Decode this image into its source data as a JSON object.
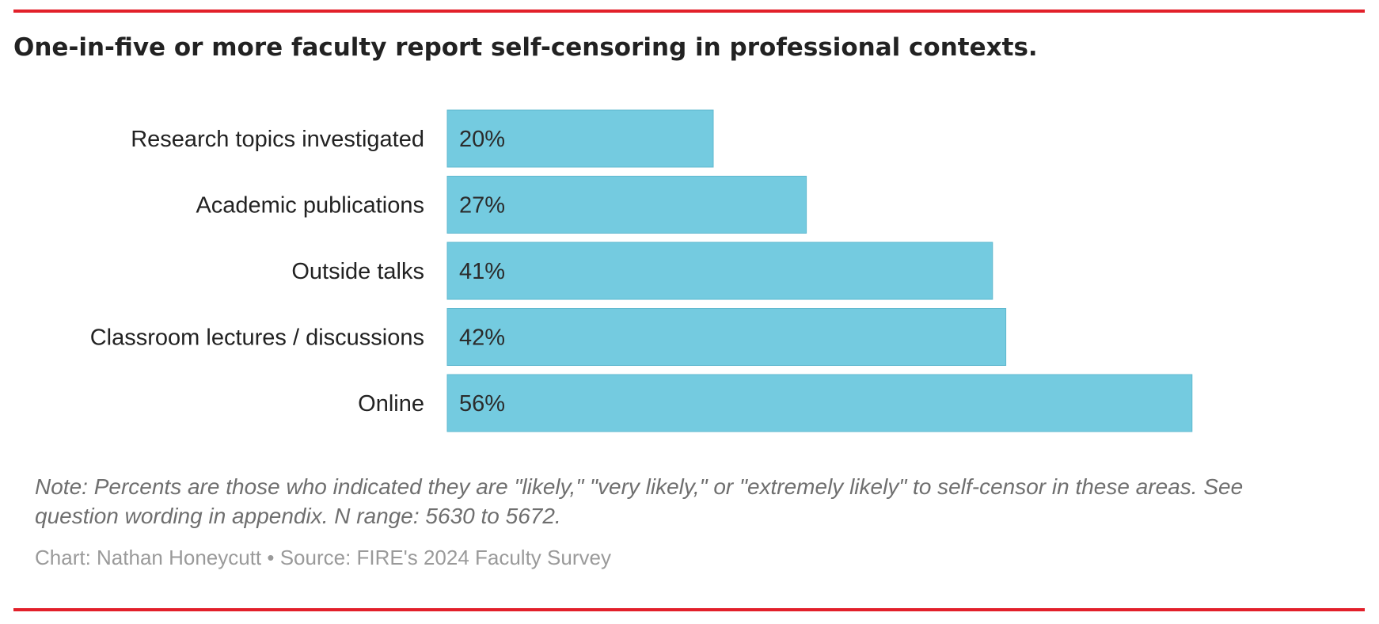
{
  "colors": {
    "accent_rule": "#e2202a",
    "bar": "#74cbe0",
    "bar_stroke": "#5fb8cf"
  },
  "title": "One-in-five or more faculty report self-censoring in professional contexts.",
  "note": "Note: Percents are those who indicated they are \"likely,\" \"very likely,\" or \"extremely likely\" to self-censor in these areas. See question wording in appendix. N range: 5630 to 5672.",
  "credit": "Chart: Nathan Honeycutt • Source: FIRE's 2024 Faculty Survey",
  "chart_data": {
    "type": "bar",
    "orientation": "horizontal",
    "title": "One-in-five or more faculty report self-censoring in professional contexts.",
    "categories": [
      "Research topics investigated",
      "Academic publications",
      "Outside talks",
      "Classroom lectures / discussions",
      "Online"
    ],
    "values": [
      20,
      27,
      41,
      42,
      56
    ],
    "value_labels": [
      "20%",
      "27%",
      "41%",
      "42%",
      "56%"
    ],
    "unit": "%",
    "xlim": [
      0,
      100
    ],
    "grid": false,
    "legend": "none"
  }
}
